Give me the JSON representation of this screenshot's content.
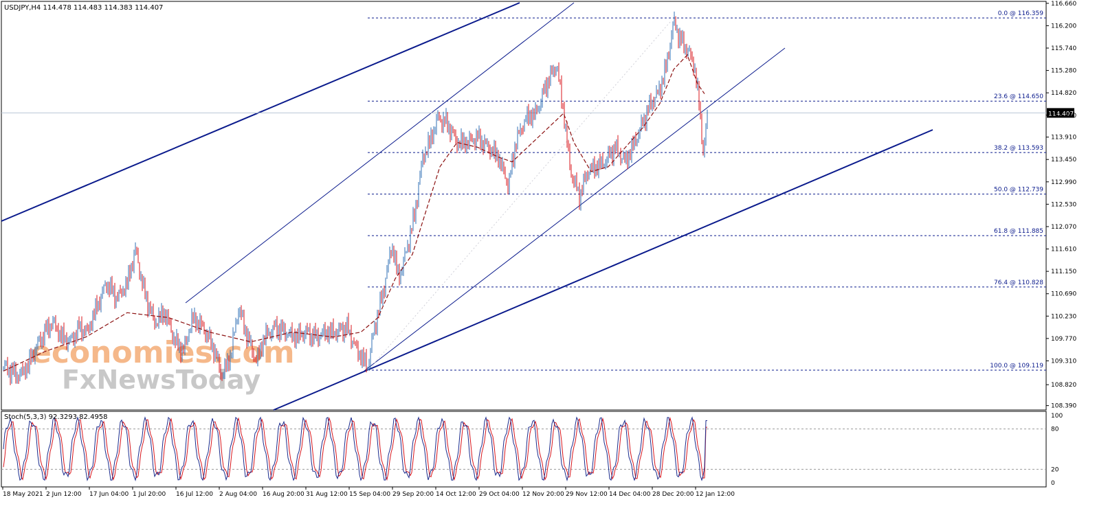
{
  "chart_data": {
    "type": "line",
    "title": "USDJPY,H4  114.478 114.483 114.383 114.407",
    "symbol": "USDJPY",
    "timeframe": "H4",
    "ohlc": {
      "open": 114.478,
      "high": 114.483,
      "low": 114.383,
      "close": 114.407
    },
    "current_price": 114.407,
    "current_price_label": "114.407",
    "price_axis_ticks": [
      "116.660",
      "116.200",
      "115.740",
      "115.280",
      "114.820",
      "114.360",
      "113.910",
      "113.450",
      "112.990",
      "112.530",
      "112.070",
      "111.610",
      "111.150",
      "110.690",
      "110.230",
      "109.770",
      "109.310",
      "108.820",
      "108.390"
    ],
    "ylim": [
      108.3,
      116.7
    ],
    "time_axis_labels": [
      "18 May 2021",
      "2 Jun 12:00",
      "17 Jun 04:00",
      "1 Jul 20:00",
      "16 Jul 12:00",
      "2 Aug 04:00",
      "16 Aug 20:00",
      "31 Aug 12:00",
      "15 Sep 04:00",
      "29 Sep 20:00",
      "14 Oct 12:00",
      "29 Oct 04:00",
      "12 Nov 20:00",
      "29 Nov 12:00",
      "14 Dec 04:00",
      "28 Dec 20:00",
      "12 Jan 12:00"
    ],
    "price_series": {
      "name": "USDJPY",
      "x": [
        0,
        10,
        22,
        35,
        48,
        60,
        72,
        85,
        98,
        110,
        122,
        135,
        150,
        165,
        180,
        192,
        205,
        220,
        235,
        250,
        262,
        275,
        290,
        305,
        318,
        330,
        342,
        355,
        368,
        380,
        395,
        410,
        425,
        440,
        455,
        470,
        485,
        500,
        515,
        530,
        540,
        552,
        565,
        575,
        585,
        598,
        610,
        620,
        632,
        645,
        660,
        675,
        690,
        705,
        720,
        735,
        745,
        760,
        775,
        790,
        805,
        815,
        825,
        838,
        850,
        862,
        875,
        890,
        905,
        918,
        930,
        942,
        955,
        965,
        975,
        985,
        995,
        1005,
        1012,
        1018,
        1025
      ],
      "values": [
        109.2,
        109.1,
        109.0,
        109.2,
        109.6,
        109.9,
        110.1,
        109.8,
        109.7,
        110.0,
        109.9,
        110.4,
        110.9,
        110.6,
        110.9,
        111.6,
        110.7,
        110.1,
        110.3,
        109.7,
        109.5,
        110.2,
        110.0,
        109.6,
        109.0,
        109.4,
        110.4,
        109.8,
        109.3,
        109.8,
        110.0,
        109.9,
        109.8,
        109.9,
        109.8,
        109.9,
        109.9,
        110.0,
        109.5,
        109.2,
        110.0,
        110.7,
        111.7,
        111.0,
        111.5,
        112.3,
        113.5,
        113.8,
        114.3,
        114.2,
        113.8,
        113.8,
        113.9,
        113.7,
        113.5,
        112.9,
        113.8,
        114.3,
        114.4,
        115.0,
        115.4,
        114.4,
        113.2,
        112.7,
        113.2,
        113.3,
        113.4,
        113.7,
        113.4,
        113.8,
        114.2,
        114.6,
        114.9,
        115.4,
        116.3,
        115.9,
        115.7,
        115.4,
        114.6,
        113.6,
        114.4
      ]
    },
    "moving_average": {
      "x": [
        0,
        60,
        120,
        180,
        240,
        300,
        360,
        420,
        480,
        520,
        545,
        570,
        595,
        615,
        635,
        660,
        690,
        720,
        740,
        770,
        800,
        815,
        830,
        855,
        880,
        905,
        930,
        955,
        975,
        995,
        1010,
        1020
      ],
      "values": [
        109.1,
        109.5,
        109.8,
        110.3,
        110.2,
        109.9,
        109.7,
        109.9,
        109.8,
        109.9,
        110.2,
        111.0,
        111.5,
        112.4,
        113.3,
        113.8,
        113.7,
        113.5,
        113.4,
        113.8,
        114.2,
        114.4,
        113.8,
        113.2,
        113.3,
        113.7,
        114.1,
        114.6,
        115.3,
        115.6,
        115.0,
        114.8
      ]
    },
    "fibonacci_levels": [
      {
        "ratio": 0.0,
        "price": 116.359,
        "label": "0.0 @ 116.359"
      },
      {
        "ratio": 23.6,
        "price": 114.65,
        "label": "23.6 @ 114.650"
      },
      {
        "ratio": 38.2,
        "price": 113.593,
        "label": "38.2 @ 113.593"
      },
      {
        "ratio": 50.0,
        "price": 112.739,
        "label": "50.0 @ 112.739"
      },
      {
        "ratio": 61.8,
        "price": 111.885,
        "label": "61.8 @ 111.885"
      },
      {
        "ratio": 76.4,
        "price": 110.828,
        "label": "76.4 @ 110.828"
      },
      {
        "ratio": 100.0,
        "price": 109.119,
        "label": "100.0 @ 109.119"
      }
    ],
    "stochastic": {
      "title": "Stoch(5,3,3) 92.3293 82.4958",
      "main": 92.3293,
      "signal": 82.4958,
      "levels": [
        80,
        20
      ],
      "axis_ticks": [
        "100",
        "80",
        "20",
        "0"
      ]
    },
    "watermark": {
      "line1": "economies.com",
      "line2": "FxNewsToday"
    },
    "grid": false,
    "colors": {
      "background": "#ffffff",
      "up_candle": "#2f6fb5",
      "down_candle": "#d8141b",
      "trendline": "#0a1a8c",
      "fib_line": "#0a1a8c",
      "ma": "#8b1010",
      "current_line": "#b8c6d4",
      "stoch_main": "#1a2a8c",
      "stoch_signal": "#d8141b",
      "watermark_orange": "#f5b88a",
      "watermark_grey": "#c8c8c8"
    }
  }
}
